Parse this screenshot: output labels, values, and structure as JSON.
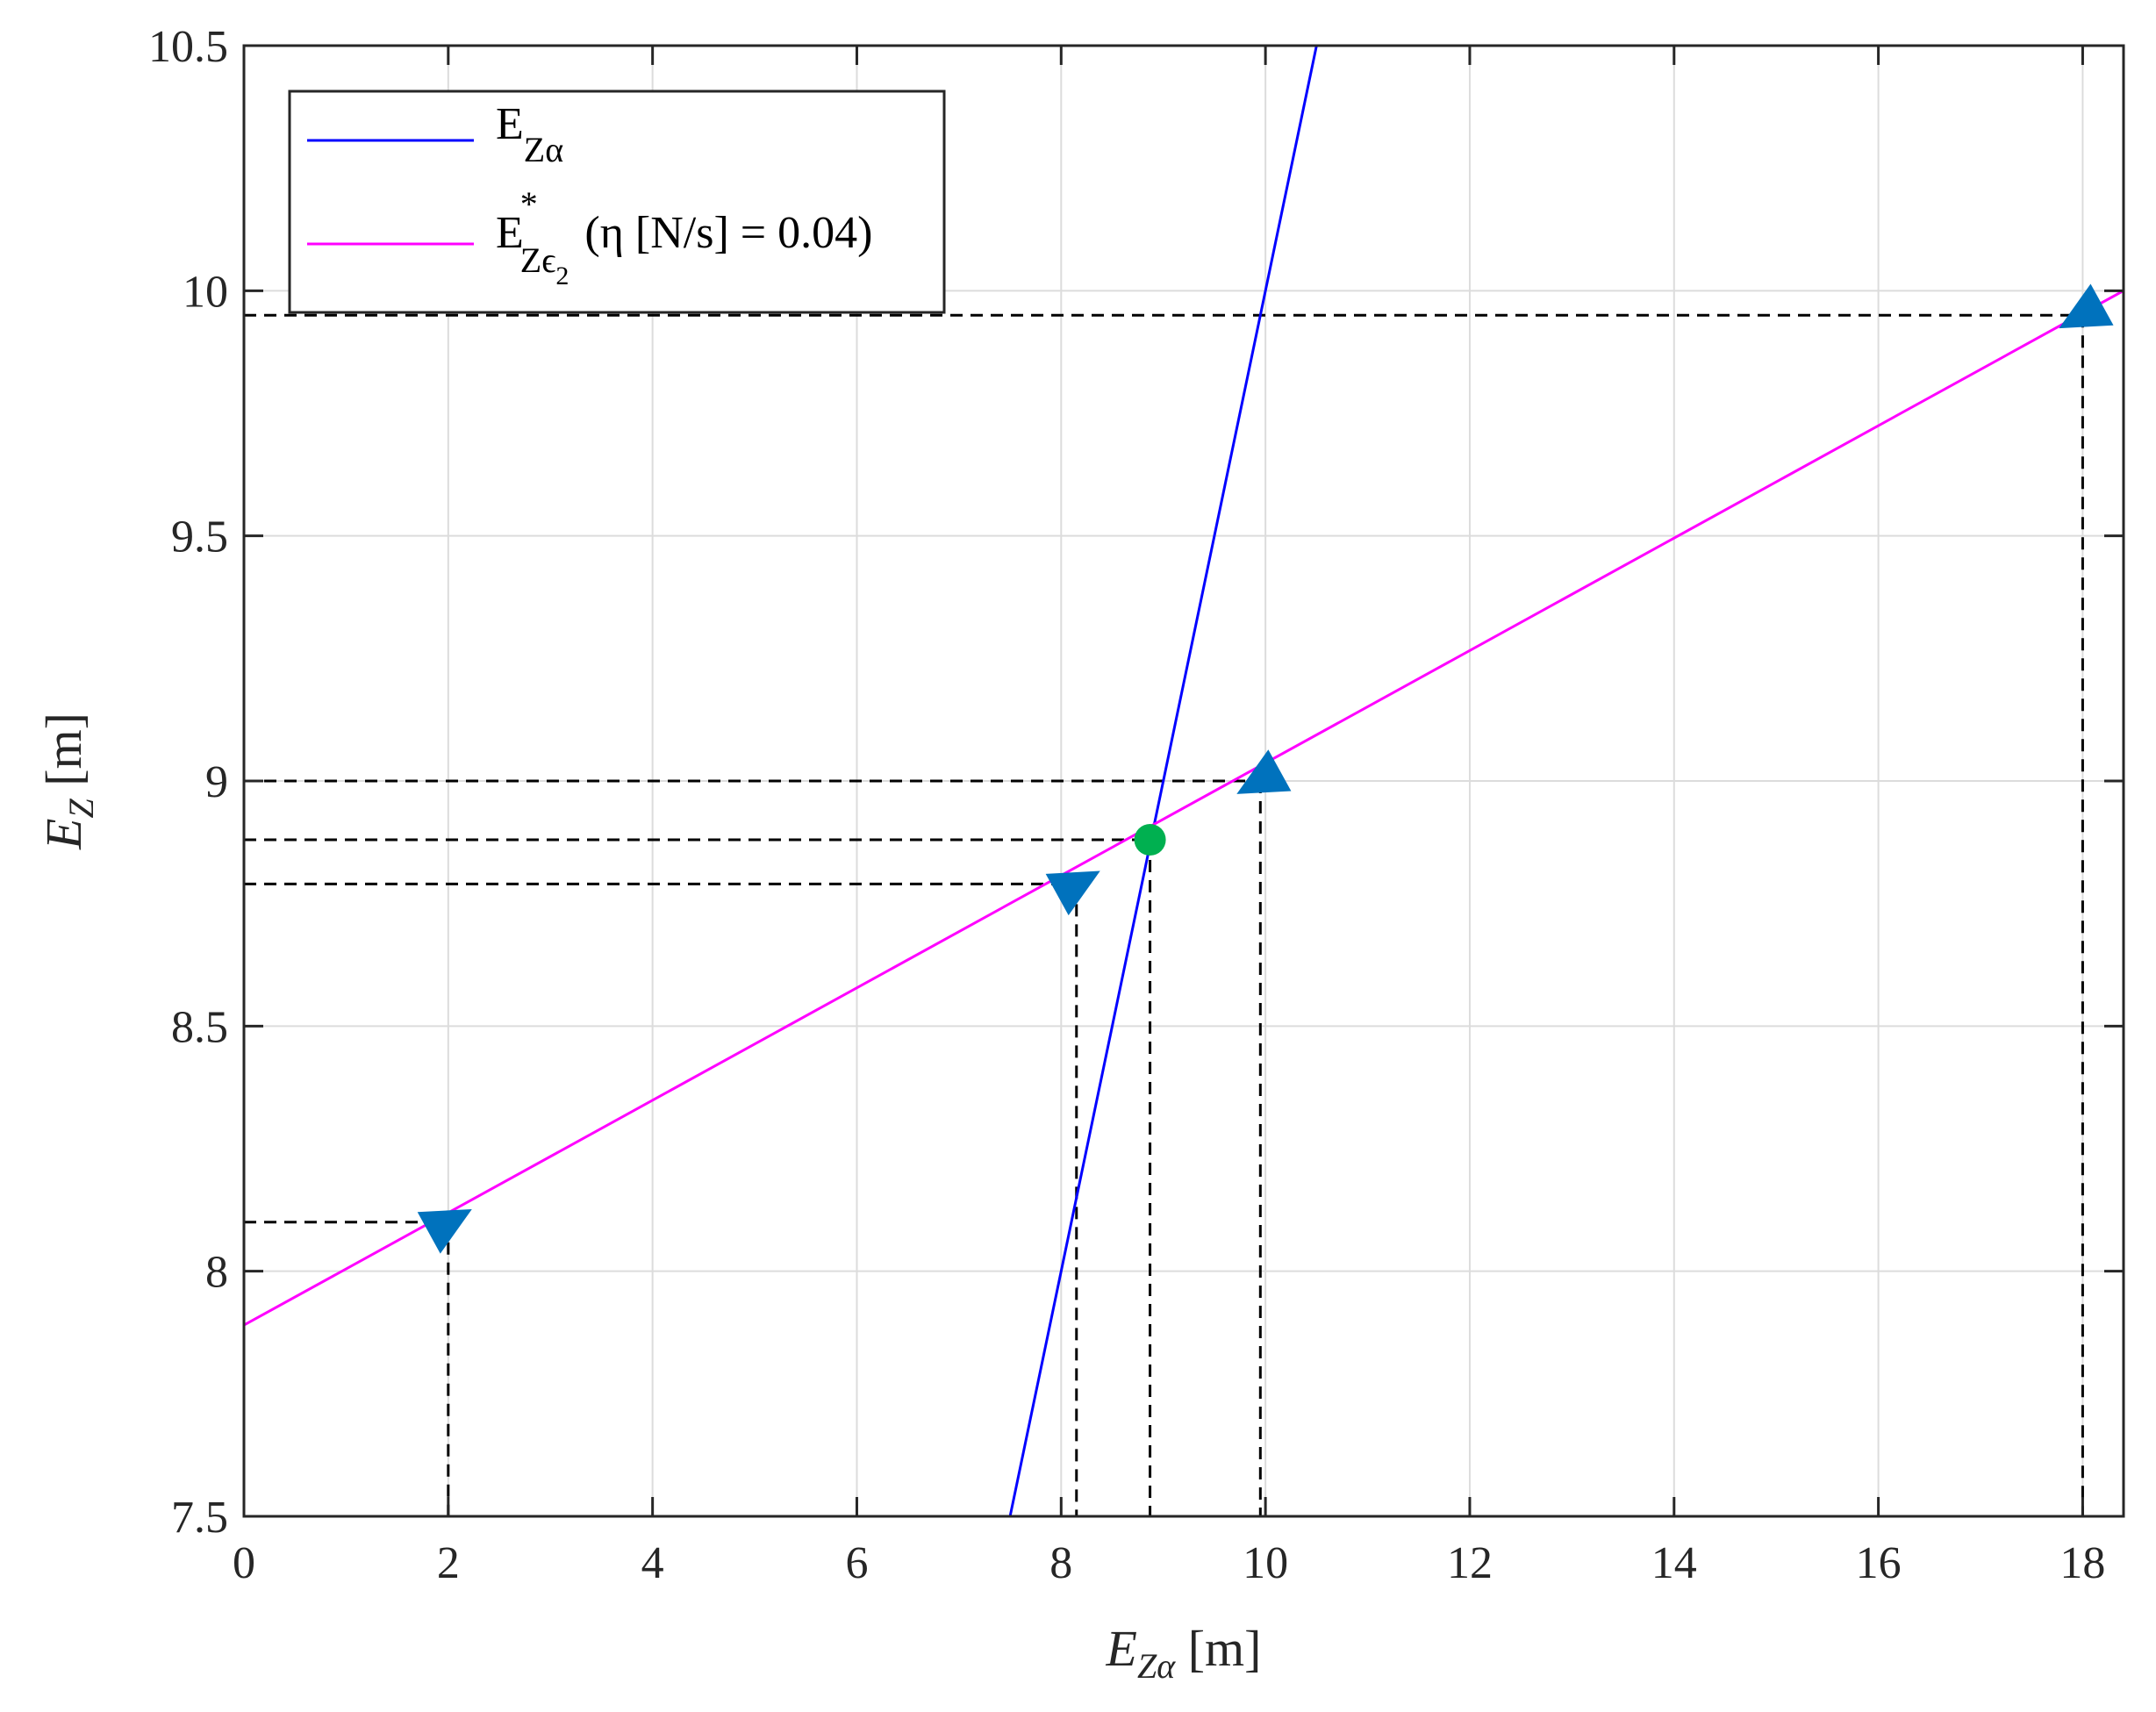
{
  "chart_data": {
    "type": "line",
    "xlabel": {
      "var": "E",
      "sub": "Zα",
      "unit": "[m]"
    },
    "ylabel": {
      "var": "E",
      "sub": "Z",
      "unit": "[m]"
    },
    "xlim": [
      0,
      18.4
    ],
    "ylim": [
      7.5,
      10.5
    ],
    "xticks": [
      0,
      2,
      4,
      6,
      8,
      10,
      12,
      14,
      16,
      18
    ],
    "yticks": [
      7.5,
      8,
      8.5,
      9,
      9.5,
      10,
      10.5
    ],
    "xtick_labels": [
      "0",
      "2",
      "4",
      "6",
      "8",
      "10",
      "12",
      "14",
      "16",
      "18"
    ],
    "ytick_labels": [
      "7.5",
      "8",
      "8.5",
      "9",
      "9.5",
      "10",
      "10.5"
    ],
    "grid": true,
    "legend_position": "top-left",
    "series": [
      {
        "name": "E_{Zα}",
        "legend_main": "E",
        "legend_sub": "Zα",
        "color": "#0000ff",
        "x": [
          7.5,
          10.5
        ],
        "y": [
          7.5,
          10.5
        ]
      },
      {
        "name": "E*_{Zε2} (η [N/s] = 0.04)",
        "legend_main": "E",
        "legend_sup": "*",
        "legend_sub": "Zϵ",
        "legend_subsub": "2",
        "legend_suffix": "(η [N/s] = 0.04)",
        "color": "#ff00ff",
        "x": [
          0,
          18.4
        ],
        "y": [
          7.89,
          10.0
        ]
      }
    ],
    "markers": {
      "color": "#0072bd",
      "triangles": [
        {
          "x": 2.0,
          "y": 8.1,
          "direction": "right"
        },
        {
          "x": 8.15,
          "y": 8.79,
          "direction": "right"
        },
        {
          "x": 9.95,
          "y": 9.0,
          "direction": "left"
        },
        {
          "x": 18.0,
          "y": 9.95,
          "direction": "left"
        }
      ],
      "fixed_point": {
        "x": 8.87,
        "y": 8.88,
        "color": "#00b050"
      }
    },
    "guide_lines": [
      {
        "x": 2.0,
        "y": 8.1
      },
      {
        "x": 8.15,
        "y": 8.79
      },
      {
        "x": 8.87,
        "y": 8.88
      },
      {
        "x": 9.95,
        "y": 9.0
      },
      {
        "x": 18.0,
        "y": 9.95
      }
    ]
  }
}
